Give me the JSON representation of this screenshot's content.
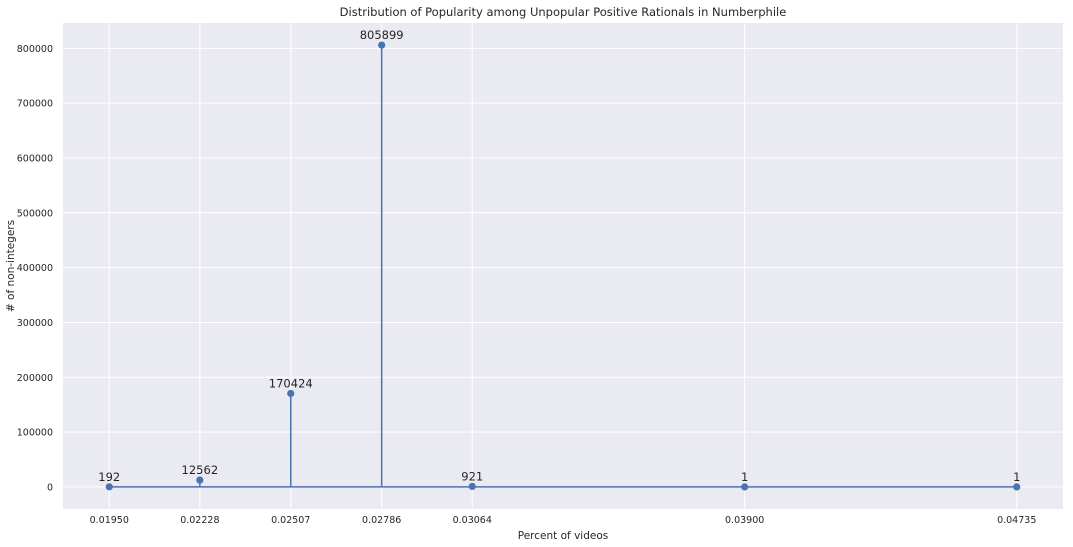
{
  "chart_data": {
    "type": "stem",
    "title": "Distribution of Popularity among Unpopular Positive Rationals in Numberphile",
    "xlabel": "Percent of videos",
    "ylabel": "# of non-integers",
    "x_tick_labels": [
      "0.01950",
      "0.02228",
      "0.02507",
      "0.02786",
      "0.03064",
      "0.03900",
      "0.04735"
    ],
    "x": [
      0.0195,
      0.02228,
      0.02507,
      0.02786,
      0.03064,
      0.039,
      0.04735
    ],
    "values": [
      192,
      12562,
      170424,
      805899,
      921,
      1,
      1
    ],
    "data_labels": [
      "192",
      "12562",
      "170424",
      "805899",
      "921",
      "1",
      "1"
    ],
    "y_ticks": [
      0,
      100000,
      200000,
      300000,
      400000,
      500000,
      600000,
      700000,
      800000
    ],
    "y_tick_labels": [
      "0",
      "100000",
      "200000",
      "300000",
      "400000",
      "500000",
      "600000",
      "700000",
      "800000"
    ],
    "xlim": [
      0.01808,
      0.04877
    ],
    "ylim": [
      -40295,
      846194
    ],
    "grid": true,
    "style": "seaborn-darkgrid",
    "colors": {
      "background": "#eaeaf2",
      "grid": "#ffffff",
      "series": "#4c72b0"
    }
  }
}
